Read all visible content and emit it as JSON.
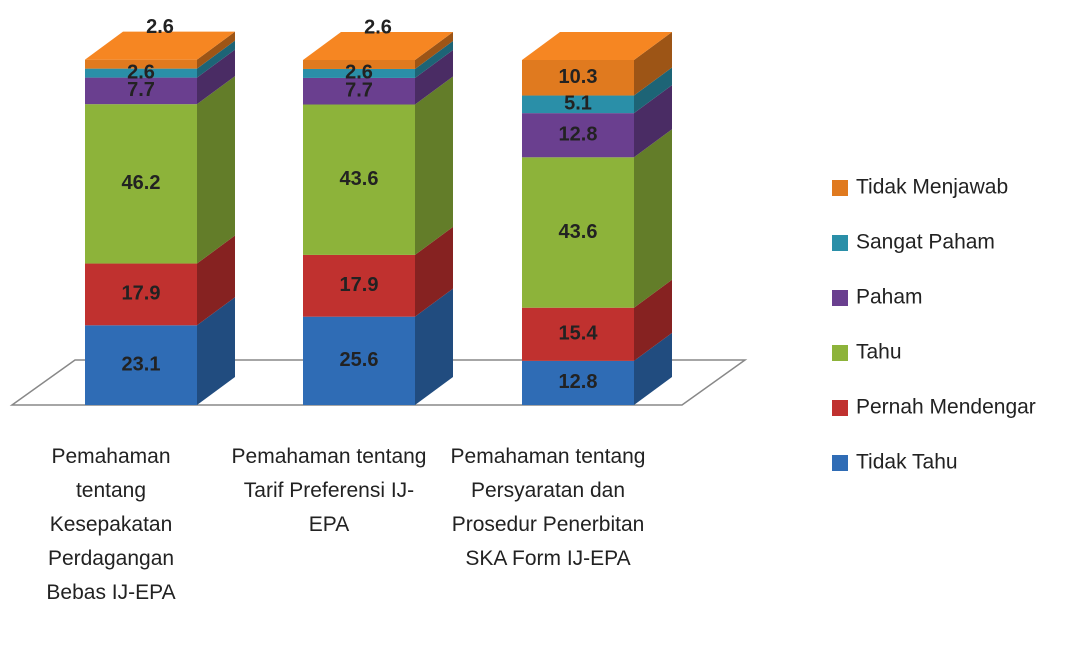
{
  "chart_data": {
    "type": "bar3d_stacked",
    "categories": [
      "Pemahaman tentang Kesepakatan Perdagangan Bebas IJ-EPA",
      "Pemahaman tentang Tarif Preferensi IJ-EPA",
      "Pemahaman tentang Persyaratan dan Prosedur Penerbitan SKA Form IJ-EPA"
    ],
    "series": [
      {
        "name": "Tidak Tahu",
        "color": "#2f6cb5",
        "values": [
          23.1,
          25.6,
          12.8
        ]
      },
      {
        "name": "Pernah Mendengar",
        "color": "#c0312f",
        "values": [
          17.9,
          17.9,
          15.4
        ]
      },
      {
        "name": "Tahu",
        "color": "#8db33a",
        "values": [
          46.2,
          43.6,
          43.6
        ]
      },
      {
        "name": "Paham",
        "color": "#6a3f8f",
        "values": [
          7.7,
          7.7,
          12.8
        ]
      },
      {
        "name": "Sangat Paham",
        "color": "#2a8fa8",
        "values": [
          2.6,
          2.6,
          5.1
        ]
      },
      {
        "name": "Tidak Menjawab",
        "color": "#e07a1f",
        "values": [
          2.6,
          2.6,
          10.3
        ]
      }
    ]
  }
}
